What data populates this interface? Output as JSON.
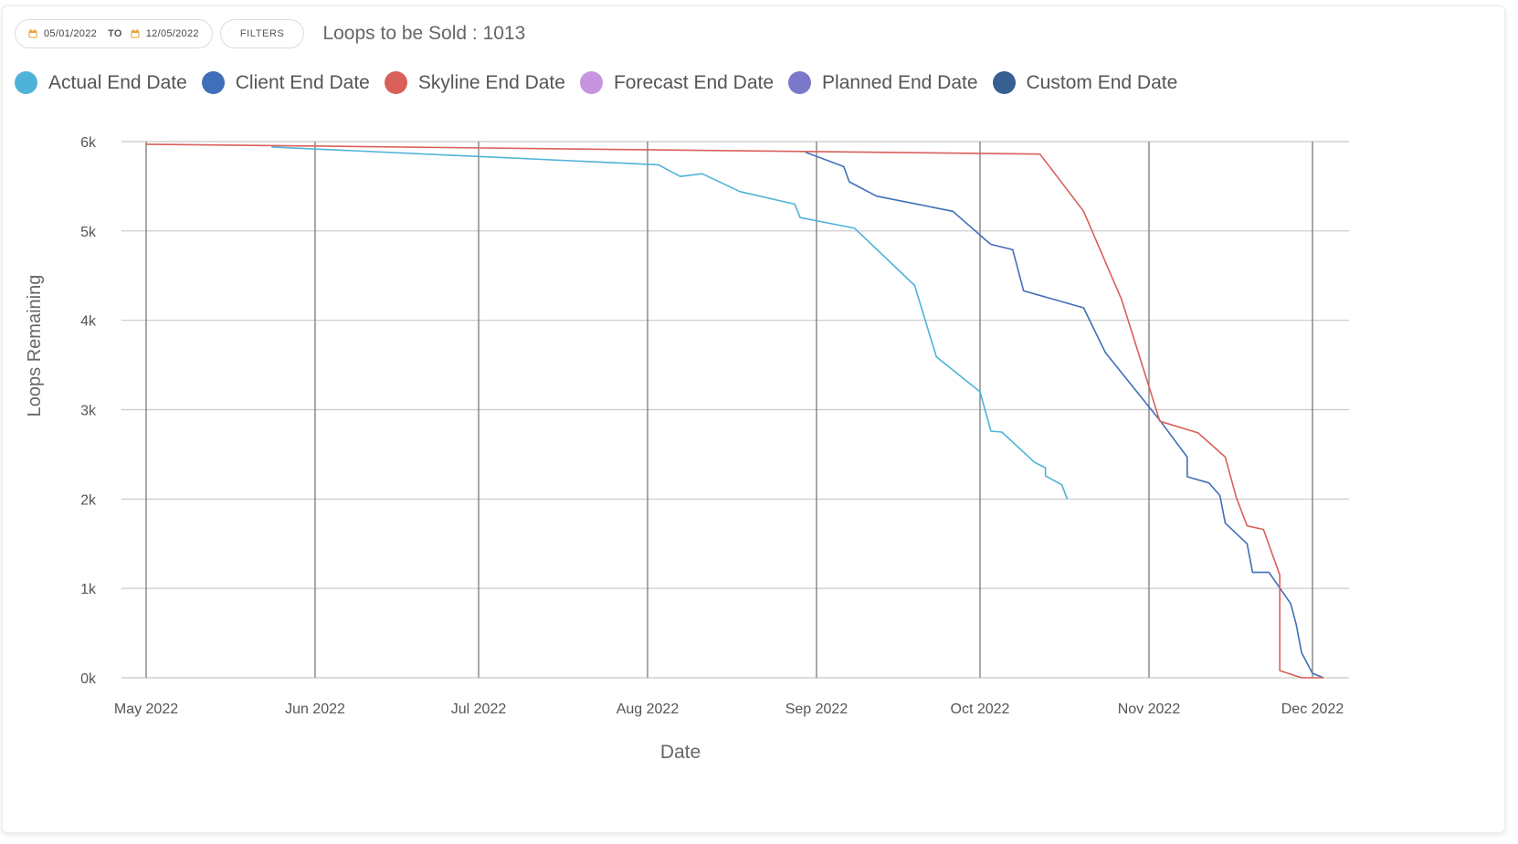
{
  "toolbar": {
    "start_date": "05/01/2022",
    "to_label": "TO",
    "end_date": "12/05/2022",
    "filters_label": "FILTERS",
    "title": "Loops to be Sold : 1013"
  },
  "colors": {
    "actual": "#4fb3d9",
    "client": "#3f6fb8",
    "skyline": "#d9605a",
    "forecast": "#c894e0",
    "planned": "#7b78c9",
    "custom": "#365f92",
    "calendar_icon": "#e8a33a"
  },
  "chart_data": {
    "type": "line",
    "xlabel": "Date",
    "ylabel": "Loops Remaining",
    "x_ticks": [
      "May 2022",
      "Jun 2022",
      "Jul 2022",
      "Aug 2022",
      "Sep 2022",
      "Oct 2022",
      "Nov 2022",
      "Dec 2022"
    ],
    "x_tick_dates": [
      "2022-05-01",
      "2022-06-01",
      "2022-07-01",
      "2022-08-01",
      "2022-09-01",
      "2022-10-01",
      "2022-11-01",
      "2022-12-01"
    ],
    "y_ticks": [
      "0k",
      "1k",
      "2k",
      "3k",
      "4k",
      "5k",
      "6k"
    ],
    "y_tick_values": [
      0,
      1000,
      2000,
      3000,
      4000,
      5000,
      6000
    ],
    "xlim": [
      "2022-05-01",
      "2022-12-05"
    ],
    "ylim": [
      0,
      6000
    ],
    "grid": true,
    "legend_position": "top-left",
    "series": [
      {
        "key": "actual",
        "name": "Actual End Date",
        "points": [
          [
            "2022-05-24",
            5940
          ],
          [
            "2022-08-03",
            5740
          ],
          [
            "2022-08-07",
            5610
          ],
          [
            "2022-08-11",
            5640
          ],
          [
            "2022-08-18",
            5440
          ],
          [
            "2022-08-28",
            5300
          ],
          [
            "2022-08-29",
            5150
          ],
          [
            "2022-09-08",
            5030
          ],
          [
            "2022-09-19",
            4390
          ],
          [
            "2022-09-23",
            3590
          ],
          [
            "2022-10-01",
            3200
          ],
          [
            "2022-10-03",
            2760
          ],
          [
            "2022-10-05",
            2750
          ],
          [
            "2022-10-11",
            2410
          ],
          [
            "2022-10-13",
            2350
          ],
          [
            "2022-10-13",
            2260
          ],
          [
            "2022-10-16",
            2160
          ],
          [
            "2022-10-17",
            2000
          ]
        ]
      },
      {
        "key": "client",
        "name": "Client End Date",
        "points": [
          [
            "2022-08-30",
            5880
          ],
          [
            "2022-09-06",
            5720
          ],
          [
            "2022-09-07",
            5550
          ],
          [
            "2022-09-12",
            5390
          ],
          [
            "2022-09-26",
            5220
          ],
          [
            "2022-10-02",
            4900
          ],
          [
            "2022-10-03",
            4850
          ],
          [
            "2022-10-07",
            4790
          ],
          [
            "2022-10-09",
            4330
          ],
          [
            "2022-10-20",
            4140
          ],
          [
            "2022-10-24",
            3640
          ],
          [
            "2022-11-03",
            2880
          ],
          [
            "2022-11-08",
            2470
          ],
          [
            "2022-11-08",
            2250
          ],
          [
            "2022-11-12",
            2180
          ],
          [
            "2022-11-14",
            2040
          ],
          [
            "2022-11-15",
            1730
          ],
          [
            "2022-11-19",
            1500
          ],
          [
            "2022-11-20",
            1180
          ],
          [
            "2022-11-23",
            1180
          ],
          [
            "2022-11-27",
            830
          ],
          [
            "2022-11-28",
            600
          ],
          [
            "2022-11-29",
            280
          ],
          [
            "2022-12-01",
            50
          ],
          [
            "2022-12-03",
            0
          ]
        ]
      },
      {
        "key": "skyline",
        "name": "Skyline End Date",
        "points": [
          [
            "2022-05-01",
            5970
          ],
          [
            "2022-10-12",
            5860
          ],
          [
            "2022-10-20",
            5220
          ],
          [
            "2022-10-27",
            4230
          ],
          [
            "2022-11-03",
            2870
          ],
          [
            "2022-11-10",
            2740
          ],
          [
            "2022-11-15",
            2470
          ],
          [
            "2022-11-17",
            2020
          ],
          [
            "2022-11-19",
            1700
          ],
          [
            "2022-11-22",
            1660
          ],
          [
            "2022-11-25",
            1150
          ],
          [
            "2022-11-25",
            80
          ],
          [
            "2022-11-29",
            0
          ],
          [
            "2022-12-03",
            0
          ]
        ]
      },
      {
        "key": "forecast",
        "name": "Forecast End Date",
        "points": []
      },
      {
        "key": "planned",
        "name": "Planned End Date",
        "points": []
      },
      {
        "key": "custom",
        "name": "Custom End Date",
        "points": []
      }
    ]
  }
}
